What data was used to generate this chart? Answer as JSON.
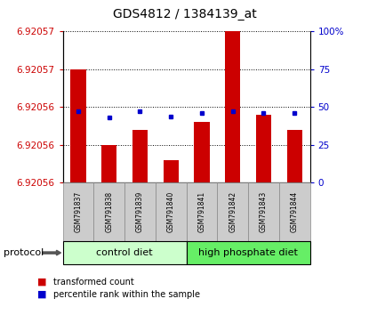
{
  "title": "GDS4812 / 1384139_at",
  "samples": [
    "GSM791837",
    "GSM791838",
    "GSM791839",
    "GSM791840",
    "GSM791841",
    "GSM791842",
    "GSM791843",
    "GSM791844"
  ],
  "group_labels": [
    "control diet",
    "high phosphate diet"
  ],
  "group_light_colors": [
    "#CCFFCC",
    "#66EE66"
  ],
  "bar_color": "#CC0000",
  "blue_color": "#0000CC",
  "red_label_color": "#CC0000",
  "blue_label_color": "#0000CC",
  "y_min": 6.920555,
  "y_max": 6.920575,
  "y_ticks": [
    6.920555,
    6.92056,
    6.920565,
    6.92057,
    6.920575
  ],
  "y_tick_labels": [
    "6.92056",
    "6.92056",
    "6.92056",
    "6.92057",
    "6.92057"
  ],
  "y2_ticks": [
    0,
    25,
    50,
    75,
    100
  ],
  "y2_tick_labels": [
    "0",
    "25",
    "50",
    "75",
    "100%"
  ],
  "transformed_counts": [
    6.92057,
    6.92056,
    6.920562,
    6.920558,
    6.920563,
    6.920575,
    6.920564,
    6.920562
  ],
  "percentile_ranks": [
    47,
    43,
    47,
    44,
    46,
    47,
    46,
    46
  ],
  "legend_labels": [
    "transformed count",
    "percentile rank within the sample"
  ],
  "protocol_label": "protocol",
  "title_fontsize": 10
}
